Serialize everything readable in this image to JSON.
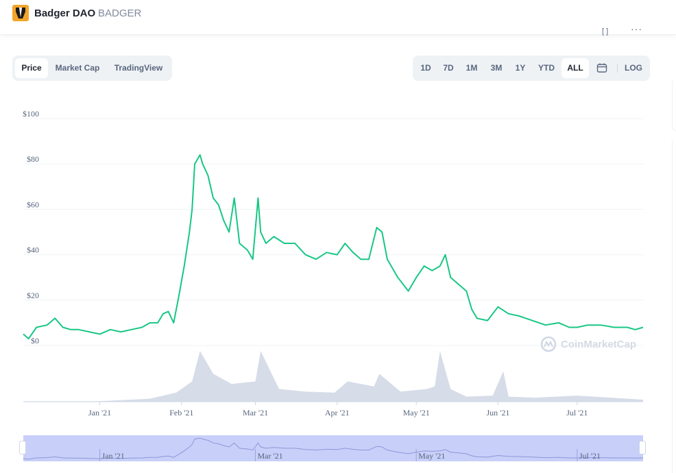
{
  "header": {
    "coin_name": "Badger DAO",
    "coin_symbol": "BADGER",
    "logo_icon": "badger-logo-icon",
    "fullscreen_icon": "fullscreen-icon",
    "more_icon": "more-icon"
  },
  "tabs": [
    {
      "label": "Price",
      "active": true
    },
    {
      "label": "Market Cap",
      "active": false
    },
    {
      "label": "TradingView",
      "active": false
    }
  ],
  "ranges": [
    {
      "label": "1D",
      "active": false
    },
    {
      "label": "7D",
      "active": false
    },
    {
      "label": "1M",
      "active": false
    },
    {
      "label": "3M",
      "active": false
    },
    {
      "label": "1Y",
      "active": false
    },
    {
      "label": "YTD",
      "active": false
    },
    {
      "label": "ALL",
      "active": true
    }
  ],
  "calendar_icon": "calendar-icon",
  "log_label": "LOG",
  "watermark": "CoinMarketCap",
  "colors": {
    "line": "#16c784",
    "volume": "#cfd6e4",
    "navigator_fill": "#b6bff7",
    "grid": "#eff2f5",
    "accent_text": "#58667e"
  },
  "chart_data": {
    "type": "line",
    "title": "",
    "xlabel": "",
    "ylabel": "",
    "x_range": [
      "2020-12-03",
      "2021-07-26"
    ],
    "ylim": [
      0,
      100
    ],
    "y_ticks": [
      0,
      20,
      40,
      60,
      80,
      100
    ],
    "y_tick_labels": [
      "$0",
      "$20",
      "$40",
      "$60",
      "$80",
      "$100"
    ],
    "x_ticks": [
      "2021-01-01",
      "2021-02-01",
      "2021-03-01",
      "2021-04-01",
      "2021-05-01",
      "2021-06-01",
      "2021-07-01"
    ],
    "x_tick_labels": [
      "Jan '21",
      "Feb '21",
      "Mar '21",
      "Apr '21",
      "May '21",
      "Jun '21",
      "Jul '21"
    ],
    "navigator_tick_labels": [
      "Jan '21",
      "Mar '21",
      "May '21",
      "Jul '21"
    ],
    "grid": true,
    "series": [
      {
        "x": [
          "2020-12-03",
          "2020-12-05",
          "2020-12-08",
          "2020-12-12",
          "2020-12-15",
          "2020-12-18",
          "2020-12-21",
          "2020-12-24",
          "2020-12-28",
          "2021-01-01",
          "2021-01-05",
          "2021-01-09",
          "2021-01-13",
          "2021-01-17",
          "2021-01-20",
          "2021-01-23",
          "2021-01-25",
          "2021-01-27",
          "2021-01-29",
          "2021-01-31",
          "2021-02-02",
          "2021-02-04",
          "2021-02-05",
          "2021-02-06",
          "2021-02-08",
          "2021-02-09",
          "2021-02-11",
          "2021-02-13",
          "2021-02-15",
          "2021-02-17",
          "2021-02-19",
          "2021-02-21",
          "2021-02-23",
          "2021-02-26",
          "2021-02-28",
          "2021-03-02",
          "2021-03-03",
          "2021-03-05",
          "2021-03-08",
          "2021-03-12",
          "2021-03-16",
          "2021-03-20",
          "2021-03-24",
          "2021-03-28",
          "2021-04-01",
          "2021-04-04",
          "2021-04-07",
          "2021-04-10",
          "2021-04-13",
          "2021-04-16",
          "2021-04-18",
          "2021-04-20",
          "2021-04-24",
          "2021-04-28",
          "2021-05-01",
          "2021-05-04",
          "2021-05-07",
          "2021-05-10",
          "2021-05-12",
          "2021-05-14",
          "2021-05-17",
          "2021-05-20",
          "2021-05-22",
          "2021-05-24",
          "2021-05-28",
          "2021-06-01",
          "2021-06-05",
          "2021-06-09",
          "2021-06-14",
          "2021-06-19",
          "2021-06-24",
          "2021-06-28",
          "2021-07-01",
          "2021-07-05",
          "2021-07-10",
          "2021-07-15",
          "2021-07-20",
          "2021-07-23",
          "2021-07-26"
        ],
        "values": [
          5,
          3,
          8,
          9,
          12,
          8,
          7,
          7,
          6,
          5,
          7,
          6,
          7,
          8,
          10,
          10,
          14,
          15,
          10,
          22,
          35,
          50,
          60,
          80,
          84,
          80,
          75,
          65,
          62,
          55,
          50,
          65,
          45,
          42,
          38,
          65,
          50,
          45,
          48,
          45,
          45,
          40,
          38,
          41,
          40,
          45,
          41,
          38,
          38,
          52,
          50,
          38,
          30,
          24,
          30,
          35,
          33,
          35,
          40,
          30,
          27,
          24,
          16,
          12,
          11,
          17,
          14,
          13,
          11,
          9,
          10,
          8,
          8,
          9,
          9,
          8,
          8,
          7,
          8
        ]
      }
    ],
    "volume_series": {
      "x": [
        "2020-12-03",
        "2021-01-01",
        "2021-01-20",
        "2021-01-30",
        "2021-02-05",
        "2021-02-08",
        "2021-02-13",
        "2021-02-20",
        "2021-03-01",
        "2021-03-03",
        "2021-03-10",
        "2021-03-20",
        "2021-03-31",
        "2021-04-05",
        "2021-04-15",
        "2021-04-17",
        "2021-04-25",
        "2021-05-05",
        "2021-05-08",
        "2021-05-10",
        "2021-05-14",
        "2021-05-20",
        "2021-05-30",
        "2021-06-03",
        "2021-06-05",
        "2021-06-15",
        "2021-07-01",
        "2021-07-26"
      ],
      "values": [
        1,
        1,
        6,
        18,
        40,
        100,
        55,
        35,
        40,
        100,
        25,
        20,
        18,
        40,
        30,
        55,
        20,
        25,
        30,
        100,
        25,
        10,
        12,
        60,
        10,
        8,
        12,
        4
      ]
    }
  }
}
